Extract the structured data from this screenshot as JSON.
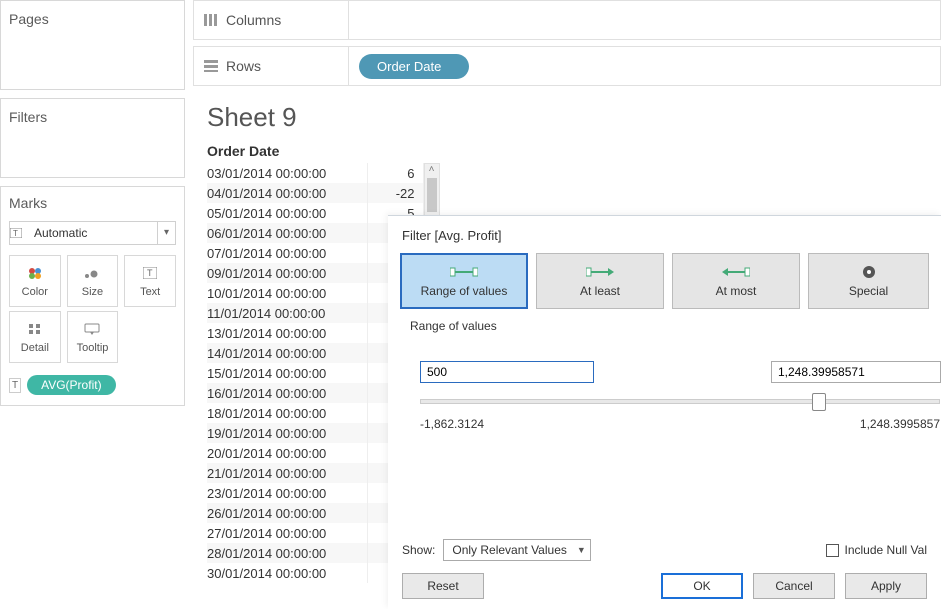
{
  "left": {
    "pages_label": "Pages",
    "filters_label": "Filters",
    "marks_label": "Marks",
    "mark_type": "Automatic",
    "mark_buttons": {
      "color": "Color",
      "size": "Size",
      "text": "Text",
      "detail": "Detail",
      "tooltip": "Tooltip"
    },
    "pill": "AVG(Profit)"
  },
  "shelves": {
    "columns_label": "Columns",
    "rows_label": "Rows",
    "row_pill": "Order Date"
  },
  "sheet": {
    "title": "Sheet 9",
    "column_header": "Order Date",
    "rows": [
      {
        "date": "03/01/2014 00:00:00",
        "val": "6"
      },
      {
        "date": "04/01/2014 00:00:00",
        "val": "-22"
      },
      {
        "date": "05/01/2014 00:00:00",
        "val": "5"
      },
      {
        "date": "06/01/2014 00:00:00",
        "val": ""
      },
      {
        "date": "07/01/2014 00:00:00",
        "val": ""
      },
      {
        "date": "09/01/2014 00:00:00",
        "val": ""
      },
      {
        "date": "10/01/2014 00:00:00",
        "val": ""
      },
      {
        "date": "11/01/2014 00:00:00",
        "val": ""
      },
      {
        "date": "13/01/2014 00:00:00",
        "val": ""
      },
      {
        "date": "14/01/2014 00:00:00",
        "val": ""
      },
      {
        "date": "15/01/2014 00:00:00",
        "val": ""
      },
      {
        "date": "16/01/2014 00:00:00",
        "val": ""
      },
      {
        "date": "18/01/2014 00:00:00",
        "val": ""
      },
      {
        "date": "19/01/2014 00:00:00",
        "val": ""
      },
      {
        "date": "20/01/2014 00:00:00",
        "val": ""
      },
      {
        "date": "21/01/2014 00:00:00",
        "val": ""
      },
      {
        "date": "23/01/2014 00:00:00",
        "val": ""
      },
      {
        "date": "26/01/2014 00:00:00",
        "val": ""
      },
      {
        "date": "27/01/2014 00:00:00",
        "val": ""
      },
      {
        "date": "28/01/2014 00:00:00",
        "val": ""
      },
      {
        "date": "30/01/2014 00:00:00",
        "val": ""
      }
    ]
  },
  "dialog": {
    "title": "Filter [Avg. Profit]",
    "tabs": {
      "range": "Range of values",
      "atleast": "At least",
      "atmost": "At most",
      "special": "Special"
    },
    "section_label": "Range of values",
    "min_value": "500",
    "max_value": "1,248.39958571",
    "slider_min": "-1,862.3124",
    "slider_max": "1,248.3995857",
    "show_label": "Show:",
    "show_option": "Only Relevant Values",
    "include_null": "Include Null Val",
    "buttons": {
      "reset": "Reset",
      "ok": "OK",
      "cancel": "Cancel",
      "apply": "Apply"
    },
    "colors": {
      "tab_active_bg": "#bcdcf4",
      "tab_active_border": "#2a6bbf",
      "tab_bg": "#e5e5e5",
      "primary_border": "#1a6fd8"
    }
  },
  "colors": {
    "green_pill": "#3fb7a5",
    "blue_pill": "#4f98b5",
    "border": "#d8d8d8"
  }
}
